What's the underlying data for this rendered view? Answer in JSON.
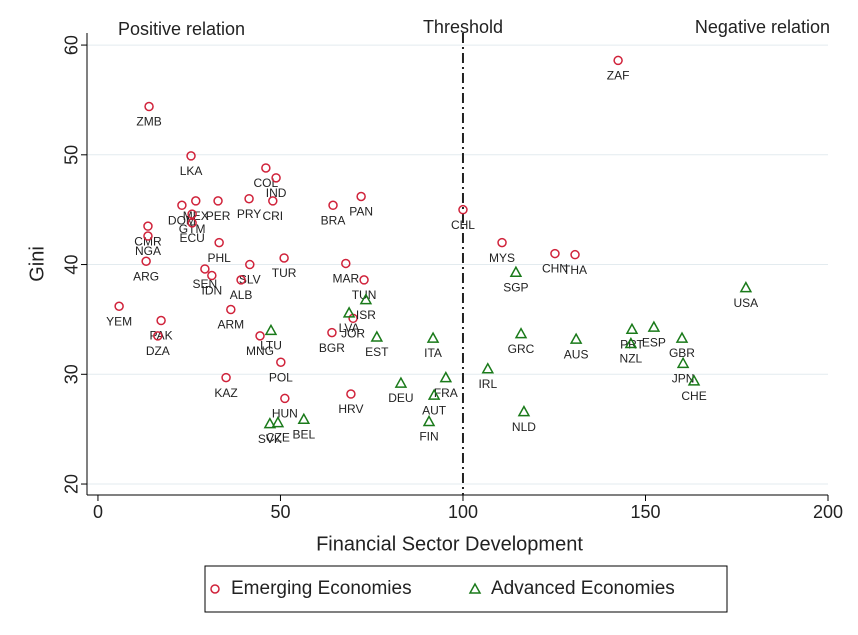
{
  "chart_data": {
    "type": "scatter",
    "xlabel": "Financial Sector Development",
    "ylabel": "Gini",
    "xlim": [
      -3,
      200
    ],
    "ylim": [
      19,
      61.1
    ],
    "xticks": [
      0,
      50,
      100,
      150,
      200
    ],
    "yticks": [
      20,
      30,
      40,
      50,
      60
    ],
    "grid": true,
    "threshold": {
      "label": "Threshold",
      "x": 100
    },
    "annotations": [
      "Positive relation",
      "Negative relation"
    ],
    "legend": "bottom",
    "series": [
      {
        "name": "Emerging Economies",
        "color": "#d0223a",
        "marker": "circle",
        "labels": [
          "ZMB",
          "LKA",
          "COL",
          "IND",
          "PRY",
          "CRI",
          "DOM",
          "MEX",
          "GTM",
          "ECU",
          "PER",
          "BRA",
          "PAN",
          "CMR",
          "NGA",
          "ARG",
          "PHL",
          "SEN",
          "IDN",
          "SLV",
          "ALB",
          "TUR",
          "MAR",
          "TUN",
          "YEM",
          "PAK",
          "DZA",
          "ARM",
          "MNG",
          "POL",
          "KAZ",
          "HUN",
          "BGR",
          "JOR",
          "HRV",
          "CHL",
          "MYS",
          "CHN",
          "THA",
          "ZAF"
        ],
        "x": [
          14.0,
          25.5,
          46.0,
          48.8,
          41.4,
          47.9,
          23.0,
          26.8,
          25.8,
          25.8,
          32.9,
          64.4,
          72.1,
          13.7,
          13.7,
          13.2,
          33.2,
          29.3,
          31.2,
          41.6,
          39.2,
          51.0,
          67.9,
          72.9,
          5.8,
          17.3,
          16.4,
          36.4,
          44.4,
          50.1,
          35.1,
          51.2,
          64.1,
          69.9,
          69.3,
          100.0,
          110.7,
          125.2,
          130.7,
          142.5
        ],
        "values": [
          54.4,
          49.9,
          48.8,
          47.9,
          46.0,
          45.8,
          45.4,
          45.8,
          44.6,
          43.8,
          45.8,
          45.4,
          46.2,
          43.5,
          42.6,
          40.3,
          42.0,
          39.6,
          39.0,
          40.0,
          38.6,
          40.6,
          40.1,
          38.6,
          36.2,
          34.9,
          33.5,
          35.9,
          33.5,
          31.1,
          29.7,
          27.8,
          33.8,
          35.1,
          28.2,
          45.0,
          42.0,
          41.0,
          40.9,
          58.6
        ]
      },
      {
        "name": "Advanced Economies",
        "color": "#1a7a1a",
        "marker": "triangle",
        "labels": [
          "USA",
          "SGP",
          "LVA",
          "ISR",
          "LTU",
          "EST",
          "ITA",
          "GRC",
          "AUS",
          "PRT",
          "ESP",
          "NZL",
          "GBR",
          "JPN",
          "CHE",
          "IRL",
          "FRA",
          "DEU",
          "AUT",
          "FIN",
          "NLD",
          "SVK",
          "CZE",
          "BEL"
        ],
        "x": [
          177.5,
          114.5,
          68.8,
          73.4,
          47.4,
          76.4,
          91.8,
          115.9,
          131.0,
          146.3,
          152.3,
          146.0,
          160.0,
          160.3,
          163.3,
          106.8,
          95.3,
          83.0,
          92.1,
          90.7,
          116.7,
          47.1,
          49.3,
          56.4
        ],
        "values": [
          37.9,
          39.3,
          35.6,
          36.8,
          34.0,
          33.4,
          33.3,
          33.7,
          33.2,
          34.1,
          34.3,
          32.8,
          33.3,
          31.0,
          29.4,
          30.5,
          29.7,
          29.2,
          28.1,
          25.7,
          26.6,
          25.5,
          25.6,
          25.9
        ]
      }
    ]
  }
}
